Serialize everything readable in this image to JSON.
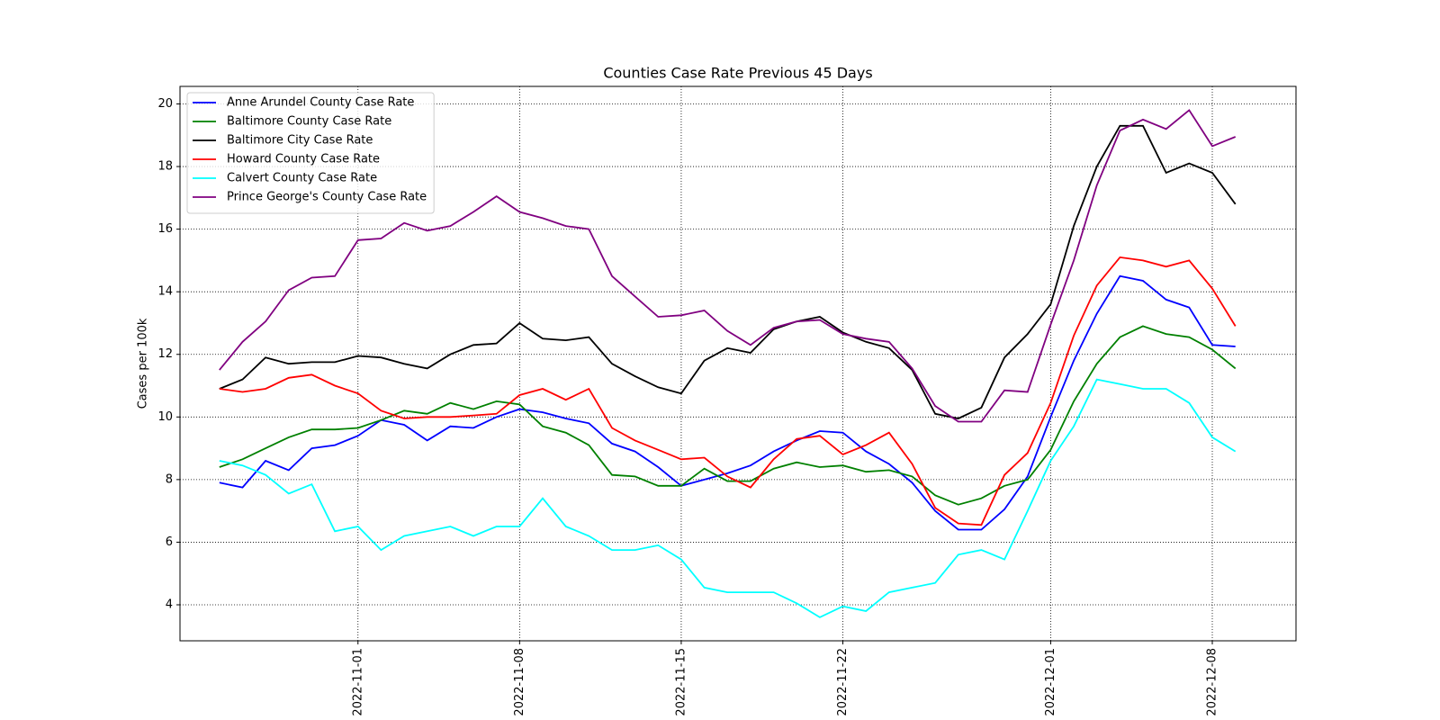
{
  "chart_data": {
    "type": "line",
    "title": "Counties Case Rate Previous 45 Days",
    "y_label": "Cases per 100k",
    "x": [
      "2022-10-26",
      "2022-10-27",
      "2022-10-28",
      "2022-10-29",
      "2022-10-30",
      "2022-10-31",
      "2022-11-01",
      "2022-11-02",
      "2022-11-03",
      "2022-11-04",
      "2022-11-05",
      "2022-11-06",
      "2022-11-07",
      "2022-11-08",
      "2022-11-09",
      "2022-11-10",
      "2022-11-11",
      "2022-11-12",
      "2022-11-13",
      "2022-11-14",
      "2022-11-15",
      "2022-11-16",
      "2022-11-17",
      "2022-11-18",
      "2022-11-19",
      "2022-11-20",
      "2022-11-21",
      "2022-11-22",
      "2022-11-23",
      "2022-11-24",
      "2022-11-25",
      "2022-11-26",
      "2022-11-27",
      "2022-11-28",
      "2022-11-29",
      "2022-11-30",
      "2022-12-01",
      "2022-12-02",
      "2022-12-03",
      "2022-12-04",
      "2022-12-05",
      "2022-12-06",
      "2022-12-07",
      "2022-12-08",
      "2022-12-09"
    ],
    "series": [
      {
        "name": "Anne Arundel County Case Rate",
        "color": "#0000ff",
        "values": [
          7.9,
          7.75,
          8.6,
          8.3,
          9.0,
          9.1,
          9.4,
          9.9,
          9.75,
          9.25,
          9.7,
          9.65,
          10.0,
          10.25,
          10.15,
          9.95,
          9.8,
          9.15,
          8.9,
          8.4,
          7.8,
          8.0,
          8.2,
          8.45,
          8.9,
          9.25,
          9.55,
          9.5,
          8.9,
          8.5,
          7.9,
          7.0,
          6.4,
          6.4,
          7.05,
          8.1,
          10.0,
          11.8,
          13.3,
          14.5,
          14.35,
          13.75,
          13.5,
          12.3,
          12.25
        ]
      },
      {
        "name": "Baltimore County Case Rate",
        "color": "#008000",
        "values": [
          8.4,
          8.65,
          9.0,
          9.35,
          9.6,
          9.6,
          9.65,
          9.9,
          10.2,
          10.1,
          10.45,
          10.25,
          10.5,
          10.4,
          9.7,
          9.5,
          9.1,
          8.15,
          8.1,
          7.8,
          7.8,
          8.35,
          7.95,
          7.95,
          8.35,
          8.55,
          8.4,
          8.45,
          8.25,
          8.3,
          8.1,
          7.5,
          7.2,
          7.4,
          7.8,
          8.0,
          8.95,
          10.5,
          11.7,
          12.55,
          12.9,
          12.65,
          12.55,
          12.15,
          11.55
        ]
      },
      {
        "name": "Baltimore City Case Rate",
        "color": "#000000",
        "values": [
          10.9,
          11.2,
          11.9,
          11.7,
          11.75,
          11.75,
          11.95,
          11.9,
          11.7,
          11.55,
          12.0,
          12.3,
          12.35,
          13.0,
          12.5,
          12.45,
          12.55,
          11.7,
          11.3,
          10.95,
          10.75,
          11.8,
          12.2,
          12.05,
          12.8,
          13.05,
          13.2,
          12.7,
          12.4,
          12.2,
          11.5,
          10.1,
          9.95,
          10.3,
          11.9,
          12.65,
          13.6,
          16.1,
          18.0,
          19.3,
          19.3,
          17.8,
          18.1,
          17.8,
          16.8
        ]
      },
      {
        "name": "Howard County Case Rate",
        "color": "#ff0000",
        "values": [
          10.9,
          10.8,
          10.9,
          11.25,
          11.35,
          11.0,
          10.75,
          10.2,
          9.95,
          10.0,
          10.0,
          10.05,
          10.1,
          10.7,
          10.9,
          10.55,
          10.9,
          9.65,
          9.25,
          8.95,
          8.65,
          8.7,
          8.1,
          7.75,
          8.65,
          9.3,
          9.4,
          8.8,
          9.1,
          9.5,
          8.5,
          7.1,
          6.6,
          6.55,
          8.15,
          8.85,
          10.45,
          12.6,
          14.2,
          15.1,
          15.0,
          14.8,
          15.0,
          14.1,
          12.9
        ]
      },
      {
        "name": "Calvert County Case Rate",
        "color": "#00ffff",
        "values": [
          8.6,
          8.45,
          8.15,
          7.55,
          7.85,
          6.35,
          6.5,
          5.75,
          6.2,
          6.35,
          6.5,
          6.2,
          6.5,
          6.5,
          7.4,
          6.5,
          6.2,
          5.75,
          5.75,
          5.9,
          5.45,
          4.55,
          4.4,
          4.4,
          4.4,
          4.05,
          3.6,
          3.95,
          3.8,
          4.4,
          4.55,
          4.7,
          5.6,
          5.75,
          5.45,
          7.0,
          8.6,
          9.7,
          11.2,
          11.05,
          10.9,
          10.9,
          10.45,
          9.35,
          8.9
        ]
      },
      {
        "name": "Prince George's County Case Rate",
        "color": "#800080",
        "values": [
          11.5,
          12.4,
          13.05,
          14.05,
          14.45,
          14.5,
          15.65,
          15.7,
          16.2,
          15.95,
          16.1,
          16.55,
          17.05,
          16.55,
          16.35,
          16.1,
          16.0,
          14.5,
          13.85,
          13.2,
          13.25,
          13.4,
          12.75,
          12.3,
          12.85,
          13.05,
          13.1,
          12.65,
          12.5,
          12.4,
          11.55,
          10.35,
          9.85,
          9.85,
          10.85,
          10.8,
          12.95,
          15.0,
          17.4,
          19.15,
          19.5,
          19.2,
          19.8,
          18.65,
          18.95
        ]
      }
    ],
    "xlim": [
      "2022-10-24T07:00",
      "2022-12-11T15:00"
    ],
    "xticks": [
      "2022-11-01",
      "2022-11-08",
      "2022-11-15",
      "2022-11-22",
      "2022-12-01",
      "2022-12-08"
    ],
    "ylim": [
      2.85,
      20.56
    ],
    "yticks": [
      4,
      6,
      8,
      10,
      12,
      14,
      16,
      18,
      20
    ],
    "grid": true,
    "legend": "upper left"
  }
}
